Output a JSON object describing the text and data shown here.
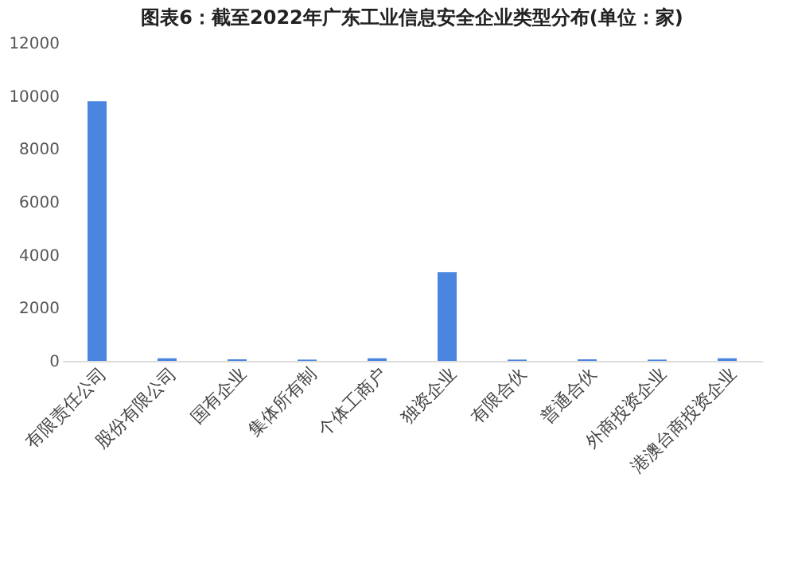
{
  "chart_data": {
    "type": "bar",
    "title": "图表6：截至2022年广东工业信息安全企业类型分布(单位：家)",
    "categories": [
      "有限责任公司",
      "股份有限公司",
      "国有企业",
      "集体所有制",
      "个体工商户",
      "独资企业",
      "有限合伙",
      "普通合伙",
      "外商投资企业",
      "港澳台商投资企业"
    ],
    "values": [
      9800,
      100,
      60,
      50,
      100,
      3350,
      50,
      60,
      50,
      100
    ],
    "color": "#4a86e0",
    "ylim": [
      0,
      12000
    ],
    "yticks": [
      0,
      2000,
      4000,
      6000,
      8000,
      10000,
      12000
    ],
    "grid": false
  }
}
